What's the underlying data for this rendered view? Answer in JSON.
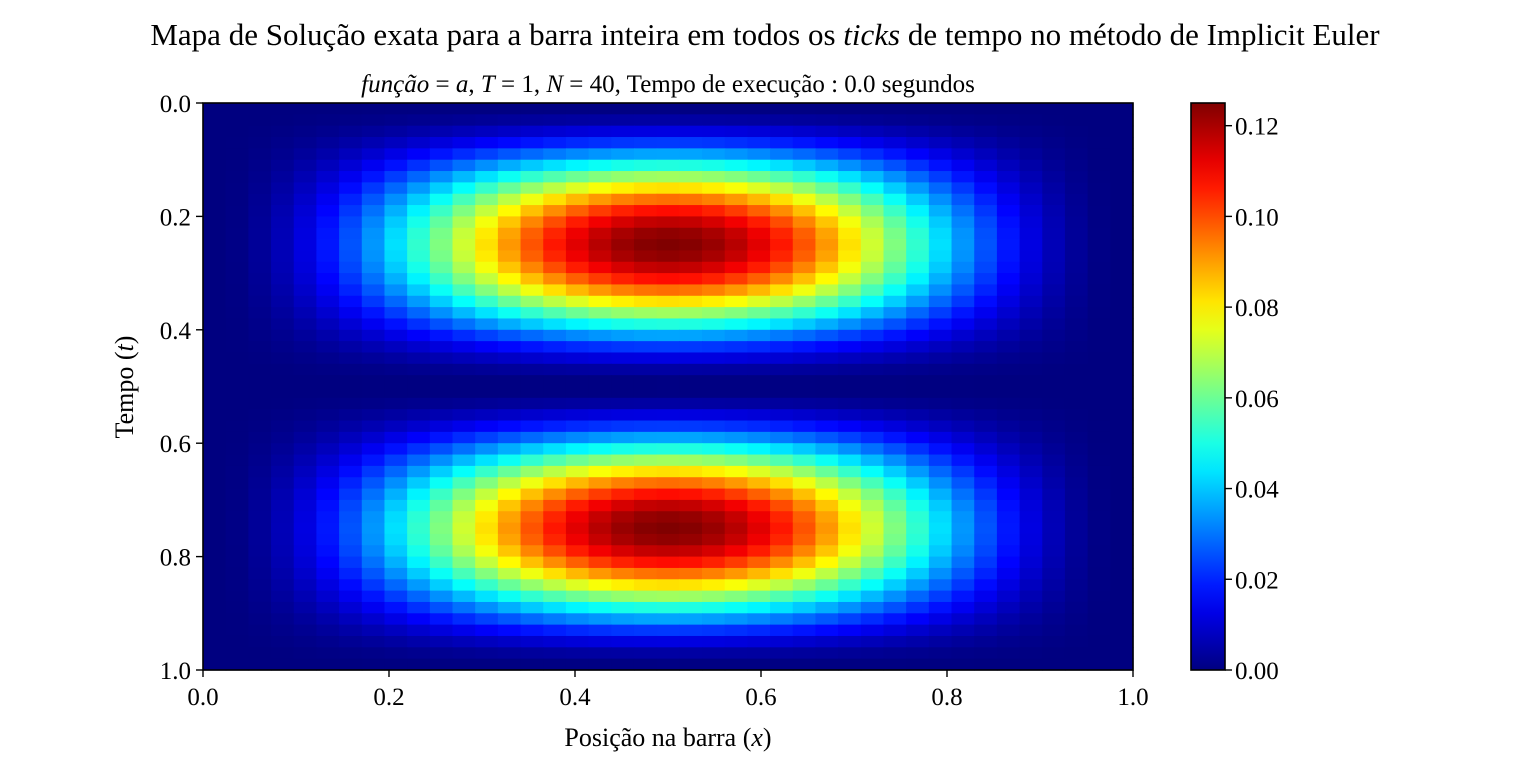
{
  "chart_data": {
    "type": "heatmap",
    "suptitle_parts": [
      {
        "text": "Mapa de Solução exata para a barra inteira em todos os ",
        "italic": false
      },
      {
        "text": "ticks",
        "italic": true
      },
      {
        "text": " de tempo no método de Implicit Euler",
        "italic": false
      }
    ],
    "title_parts": [
      {
        "text": "função",
        "italic": true
      },
      {
        "text": " = ",
        "italic": false
      },
      {
        "text": "a",
        "italic": true
      },
      {
        "text": ",  ",
        "italic": false
      },
      {
        "text": "T",
        "italic": true
      },
      {
        "text": " = 1,  ",
        "italic": false
      },
      {
        "text": "N",
        "italic": true
      },
      {
        "text": " = 40,  Tempo de execução :  0.0 segundos",
        "italic": false
      }
    ],
    "xlabel_parts": [
      {
        "text": "Posição na barra (",
        "italic": false
      },
      {
        "text": "x",
        "italic": true
      },
      {
        "text": ")",
        "italic": false
      }
    ],
    "ylabel_parts": [
      {
        "text": "Tempo (",
        "italic": false
      },
      {
        "text": "t",
        "italic": true
      },
      {
        "text": ")",
        "italic": false
      }
    ],
    "colormap": "jet",
    "x_range": [
      0.0,
      1.0
    ],
    "y_range": [
      0.0,
      1.0
    ],
    "y_inverted": true,
    "grid": false,
    "x_cells": 41,
    "y_cells": 50,
    "function": "u(x,t) = 0.125 * sin(pi*x)^2 * sin(2*pi*t)^2",
    "vmin": 0.0,
    "vmax": 0.125,
    "x_ticks": [
      "0.0",
      "0.2",
      "0.4",
      "0.6",
      "0.8",
      "1.0"
    ],
    "y_ticks": [
      "0.0",
      "0.2",
      "0.4",
      "0.6",
      "0.8",
      "1.0"
    ],
    "colorbar_ticks": [
      "0.00",
      "0.02",
      "0.04",
      "0.06",
      "0.08",
      "0.10",
      "0.12"
    ],
    "colorbar_values": [
      0.0,
      0.02,
      0.04,
      0.06,
      0.08,
      0.1,
      0.12
    ]
  }
}
